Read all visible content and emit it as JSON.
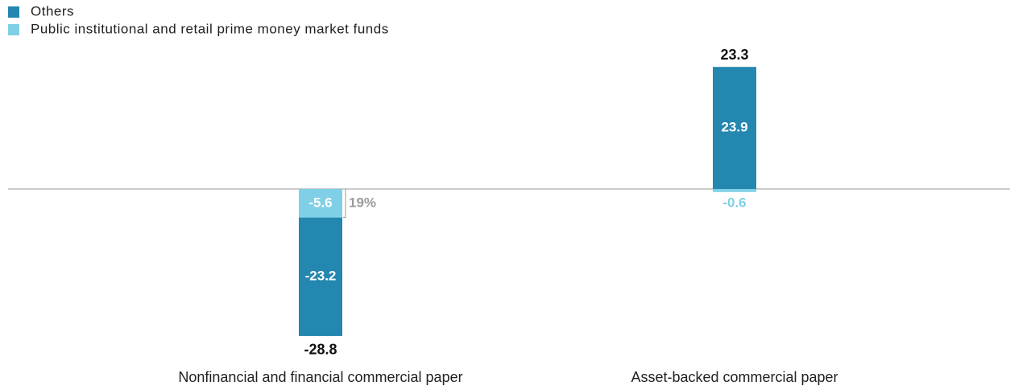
{
  "chart_data": {
    "type": "stacked_bar",
    "categories": [
      "Nonfinancial and financial commercial paper",
      "Asset-backed commercial paper"
    ],
    "series": [
      {
        "name": "Others",
        "color": "#2387b0",
        "values": [
          -23.2,
          23.9
        ]
      },
      {
        "name": "Public institutional and retail prime money market funds",
        "color": "#7fd0e6",
        "values": [
          -5.6,
          -0.6
        ]
      }
    ],
    "totals": [
      -28.8,
      23.3
    ],
    "annotation": "19%",
    "ylim": [
      -33,
      24.5
    ]
  }
}
